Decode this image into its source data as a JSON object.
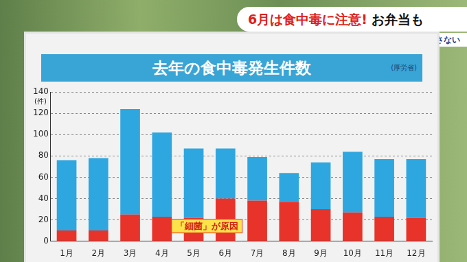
{
  "header": {
    "headline": "6月は食中毒に注意!",
    "headline_extra": "お弁当も",
    "tagline": "“細菌”をつけない・増やさない"
  },
  "chart_data": {
    "type": "bar",
    "title": "去年の食中毒発生件数",
    "source": "(厚労省)",
    "y_label": "(件)",
    "categories": [
      "1月",
      "2月",
      "3月",
      "4月",
      "5月",
      "6月",
      "7月",
      "8月",
      "9月",
      "10月",
      "11月",
      "12月"
    ],
    "series": [
      {
        "name": "「細菌」が原因",
        "color": "#e8332a",
        "values": [
          10,
          10,
          25,
          23,
          22,
          40,
          38,
          37,
          30,
          27,
          23,
          22
        ]
      },
      {
        "color": "#2ea7e0",
        "values": [
          66,
          68,
          99,
          79,
          65,
          47,
          41,
          27,
          44,
          57,
          54,
          55
        ]
      }
    ],
    "stacked": true,
    "ylim": [
      0,
      140
    ],
    "yticks": [
      0,
      20,
      40,
      60,
      80,
      100,
      120,
      140
    ],
    "grid": true
  }
}
